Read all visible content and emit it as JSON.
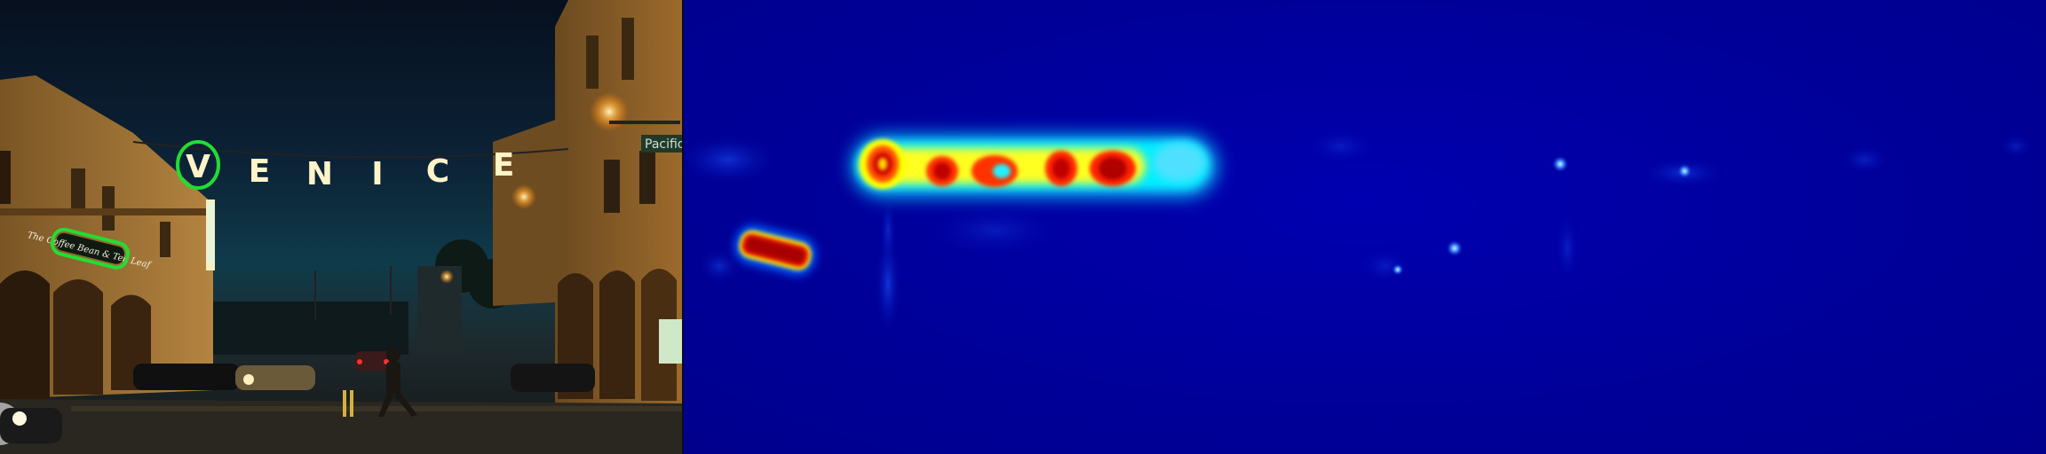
{
  "photo": {
    "sign_letters": [
      "V",
      "E",
      "N",
      "I",
      "C",
      "E"
    ],
    "storefront_sign": "The Coffee Bean & Tea Leaf",
    "street_sign": "Pacific",
    "highlight_color": "#22dd33"
  },
  "heatmap": {
    "colormap": [
      "#00008c",
      "#0050ff",
      "#00e5ff",
      "#ffff00",
      "#ff3300",
      "#aa0000"
    ]
  }
}
